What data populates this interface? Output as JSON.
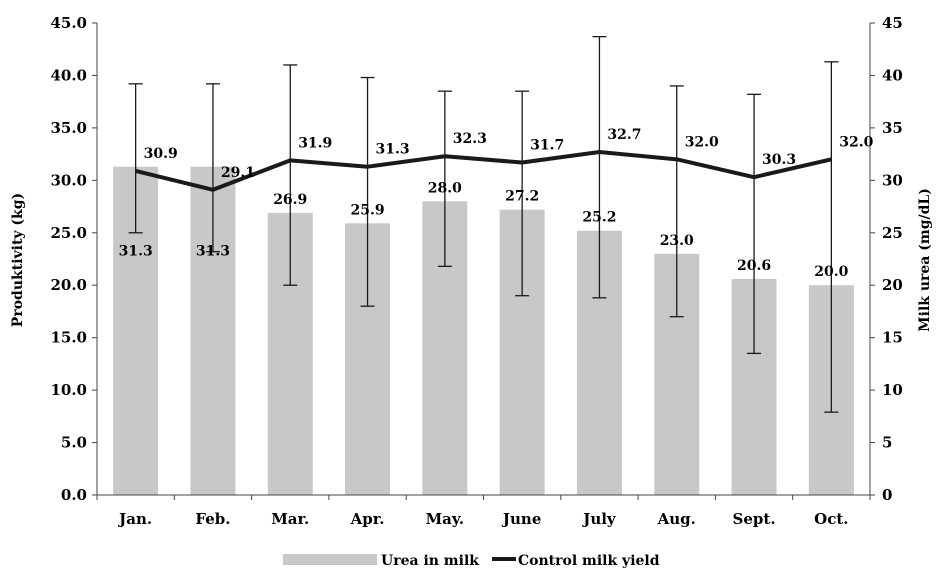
{
  "chart_data": {
    "type": "bar",
    "categories": [
      "Jan.",
      "Feb.",
      "Mar.",
      "Apr.",
      "May.",
      "June",
      "July",
      "Aug.",
      "Sept.",
      "Oct."
    ],
    "series": [
      {
        "name": "Urea in milk",
        "type": "bar",
        "axis": "right",
        "values": [
          31.3,
          31.3,
          26.9,
          25.9,
          28.0,
          27.2,
          25.2,
          23.0,
          20.6,
          20.0
        ],
        "error_low": [
          25.0,
          23.2,
          20.0,
          18.0,
          21.8,
          19.0,
          18.8,
          17.0,
          13.5,
          7.9
        ],
        "error_high": [
          39.2,
          39.2,
          41.0,
          39.8,
          38.5,
          38.5,
          43.7,
          39.0,
          38.2,
          41.3
        ],
        "labels": [
          "31.3",
          "31.3",
          "26.9",
          "25.9",
          "28.0",
          "27.2",
          "25.2",
          "23.0",
          "20.6",
          "20.0"
        ],
        "color": "#c8c8c8"
      },
      {
        "name": "Control milk yield",
        "type": "line",
        "axis": "left",
        "values": [
          30.9,
          29.1,
          31.9,
          31.3,
          32.3,
          31.7,
          32.7,
          32.0,
          30.3,
          32.0
        ],
        "labels": [
          "30.9",
          "29.1",
          "31.9",
          "31.3",
          "32.3",
          "31.7",
          "32.7",
          "32.0",
          "30.3",
          "32.0"
        ],
        "color": "#1a1a1a"
      }
    ],
    "ylabel_left": "Produktivity (kg)",
    "ylabel_right": "Milk urea (mg/dL)",
    "ylim_left": [
      0,
      45
    ],
    "ylim_right": [
      0,
      45
    ],
    "yticks_left": [
      "0.0",
      "5.0",
      "10.0",
      "15.0",
      "20.0",
      "25.0",
      "30.0",
      "35.0",
      "40.0",
      "45.0"
    ],
    "yticks_right": [
      "0",
      "5",
      "10",
      "15",
      "20",
      "25",
      "30",
      "35",
      "40",
      "45"
    ],
    "grid": false,
    "legend_position": "bottom"
  }
}
